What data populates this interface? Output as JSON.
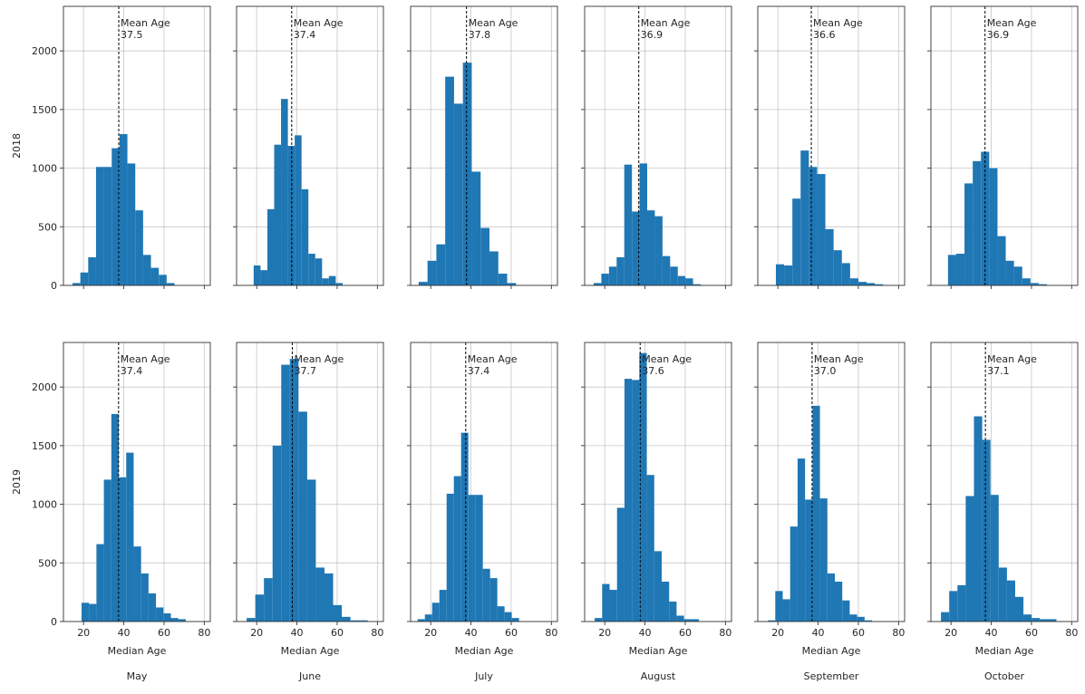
{
  "chart_data": {
    "type": "bar",
    "title": "",
    "layout": "2 rows x 6 columns small-multiple histograms",
    "rows": [
      "2018",
      "2019"
    ],
    "columns": [
      "May",
      "June",
      "July",
      "August",
      "September",
      "October"
    ],
    "xlabel": "Median Age",
    "ylabel_per_row": [
      "2018",
      "2019"
    ],
    "xlim": [
      10,
      83
    ],
    "ylim": [
      0,
      2380
    ],
    "xticks": [
      20,
      40,
      60,
      80
    ],
    "yticks": [
      0,
      500,
      1000,
      1500,
      2000
    ],
    "grid": true,
    "bar_color": "#1f77b4",
    "mean_line_color": "#000000",
    "annotation_label": "Mean Age",
    "panels": [
      {
        "row": "2018",
        "column": "May",
        "mean": 37.5,
        "bin_start": 14.5,
        "bin_width": 3.9,
        "counts": [
          20,
          110,
          240,
          1010,
          1010,
          1170,
          1290,
          1040,
          640,
          260,
          150,
          90,
          20,
          0
        ]
      },
      {
        "row": "2018",
        "column": "June",
        "mean": 37.4,
        "bin_start": 18.5,
        "bin_width": 3.4,
        "counts": [
          170,
          130,
          650,
          1200,
          1590,
          1190,
          1280,
          820,
          270,
          230,
          60,
          80,
          20
        ]
      },
      {
        "row": "2018",
        "column": "July",
        "mean": 37.8,
        "bin_start": 14.0,
        "bin_width": 4.4,
        "counts": [
          30,
          210,
          350,
          1780,
          1550,
          1900,
          970,
          490,
          290,
          100,
          20
        ]
      },
      {
        "row": "2018",
        "column": "August",
        "mean": 36.9,
        "bin_start": 14.5,
        "bin_width": 3.8,
        "counts": [
          20,
          100,
          160,
          240,
          1030,
          630,
          1040,
          640,
          590,
          250,
          160,
          80,
          60,
          10
        ]
      },
      {
        "row": "2018",
        "column": "September",
        "mean": 36.6,
        "bin_start": 19.0,
        "bin_width": 4.1,
        "counts": [
          180,
          170,
          740,
          1150,
          1010,
          950,
          480,
          300,
          190,
          60,
          30,
          20,
          10
        ]
      },
      {
        "row": "2018",
        "column": "October",
        "mean": 36.9,
        "bin_start": 18.5,
        "bin_width": 4.1,
        "counts": [
          260,
          270,
          870,
          1060,
          1140,
          1000,
          420,
          210,
          160,
          60,
          20,
          10
        ]
      },
      {
        "row": "2019",
        "column": "May",
        "mean": 37.4,
        "bin_start": 19.0,
        "bin_width": 3.7,
        "counts": [
          160,
          150,
          660,
          1210,
          1770,
          1230,
          1440,
          640,
          410,
          240,
          120,
          70,
          30,
          20
        ]
      },
      {
        "row": "2019",
        "column": "June",
        "mean": 37.7,
        "bin_start": 15.0,
        "bin_width": 4.3,
        "counts": [
          30,
          230,
          370,
          1500,
          2190,
          2240,
          1790,
          1210,
          460,
          410,
          140,
          40,
          10,
          10
        ]
      },
      {
        "row": "2019",
        "column": "July",
        "mean": 37.4,
        "bin_start": 13.5,
        "bin_width": 3.6,
        "counts": [
          20,
          60,
          160,
          270,
          1090,
          1240,
          1610,
          1080,
          1080,
          450,
          370,
          130,
          80,
          30
        ]
      },
      {
        "row": "2019",
        "column": "August",
        "mean": 37.6,
        "bin_start": 15.0,
        "bin_width": 3.7,
        "counts": [
          30,
          320,
          270,
          970,
          2070,
          2060,
          2290,
          1250,
          600,
          340,
          170,
          50,
          20,
          20
        ]
      },
      {
        "row": "2019",
        "column": "September",
        "mean": 37.0,
        "bin_start": 15.0,
        "bin_width": 3.7,
        "counts": [
          10,
          260,
          190,
          810,
          1390,
          1040,
          1840,
          1050,
          410,
          340,
          180,
          60,
          40,
          10
        ]
      },
      {
        "row": "2019",
        "column": "October",
        "mean": 37.1,
        "bin_start": 15.0,
        "bin_width": 4.1,
        "counts": [
          80,
          260,
          310,
          1070,
          1750,
          1550,
          1080,
          460,
          350,
          210,
          60,
          30,
          20,
          20
        ]
      }
    ]
  }
}
